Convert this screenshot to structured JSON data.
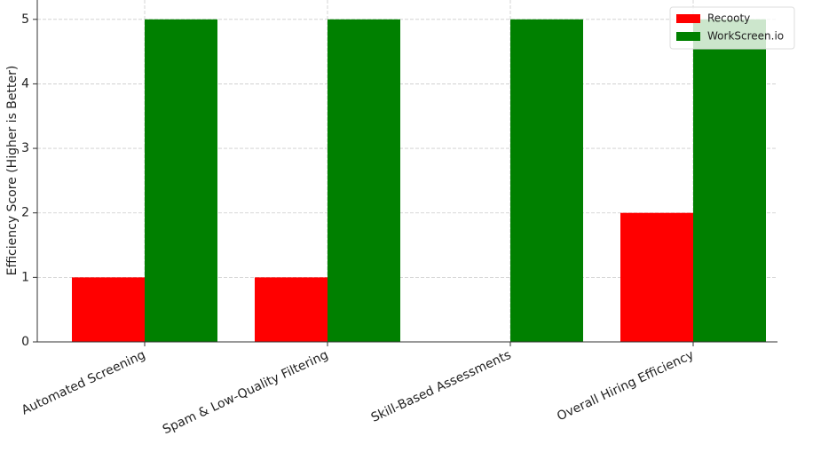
{
  "chart_data": {
    "type": "bar",
    "y_label": "Efficiency Score (Higher is Better)",
    "categories": [
      "Automated Screening",
      "Spam & Low-Quality Filtering",
      "Skill-Based Assessments",
      "Overall Hiring Efficiency"
    ],
    "series": [
      {
        "name": "Recooty",
        "color": "#ff0000",
        "values": [
          1,
          1,
          0,
          2
        ]
      },
      {
        "name": "WorkScreen.io",
        "color": "#008000",
        "values": [
          5,
          5,
          5,
          5
        ]
      }
    ],
    "ylim": [
      0,
      5.3
    ],
    "yticks": [
      0,
      1,
      2,
      3,
      4,
      5
    ],
    "grid": true,
    "legend": "upper right"
  }
}
